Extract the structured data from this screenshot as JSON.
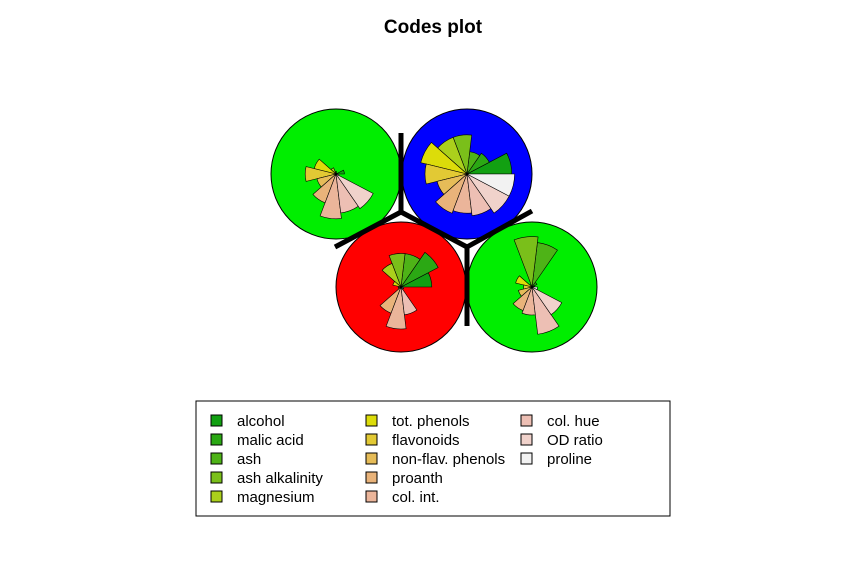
{
  "chart_data": {
    "type": "codes-plot",
    "title": "Codes plot",
    "variables": [
      {
        "name": "alcohol",
        "color": "#12a012"
      },
      {
        "name": "malic acid",
        "color": "#2ba814"
      },
      {
        "name": "ash",
        "color": "#4eb317"
      },
      {
        "name": "ash alkalinity",
        "color": "#7abf1a"
      },
      {
        "name": "magnesium",
        "color": "#abd01c"
      },
      {
        "name": "tot. phenols",
        "color": "#dcdc0a"
      },
      {
        "name": "flavonoids",
        "color": "#e2c934"
      },
      {
        "name": "non-flav. phenols",
        "color": "#e6bc58"
      },
      {
        "name": "proanth",
        "color": "#e9b37a"
      },
      {
        "name": "col. int.",
        "color": "#ebb59a"
      },
      {
        "name": "col. hue",
        "color": "#edbfb4"
      },
      {
        "name": "OD ratio",
        "color": "#f0d2cb"
      },
      {
        "name": "proline",
        "color": "#f2f2f2"
      }
    ],
    "units": [
      {
        "id": "top-left",
        "background": "#00ee00",
        "values": [
          0.15,
          0.02,
          0.02,
          0.05,
          0.12,
          0.4,
          0.55,
          0.35,
          0.55,
          0.8,
          0.7,
          0.75,
          0.05
        ]
      },
      {
        "id": "top-right",
        "background": "#0000ff",
        "values": [
          0.8,
          0.45,
          0.4,
          0.7,
          0.7,
          0.85,
          0.75,
          0.55,
          0.75,
          0.7,
          0.75,
          0.85,
          0.85
        ]
      },
      {
        "id": "bottom-left",
        "background": "#ff0000",
        "values": [
          0.55,
          0.75,
          0.6,
          0.6,
          0.45,
          0.15,
          0.05,
          0.05,
          0.5,
          0.75,
          0.5,
          0.05,
          0.05
        ]
      },
      {
        "id": "bottom-right",
        "background": "#00ee00",
        "values": [
          0.05,
          0.1,
          0.8,
          0.9,
          0.05,
          0.3,
          0.15,
          0.25,
          0.45,
          0.5,
          0.85,
          0.6,
          0.1
        ]
      }
    ],
    "legend_position": "bottom"
  }
}
